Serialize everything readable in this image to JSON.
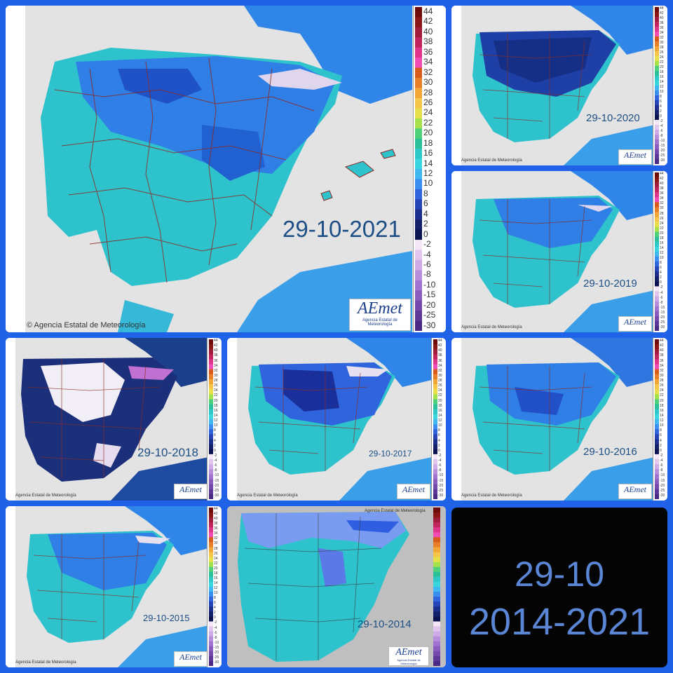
{
  "legend_labels": [
    "44",
    "42",
    "40",
    "38",
    "36",
    "34",
    "32",
    "30",
    "28",
    "26",
    "24",
    "22",
    "20",
    "18",
    "16",
    "14",
    "12",
    "10",
    "8",
    "6",
    "4",
    "2",
    "0",
    "-2",
    "-4",
    "-6",
    "-8",
    "-10",
    "-15",
    "-20",
    "-25",
    "-30"
  ],
  "legend_colors": [
    "#6e0c0c",
    "#8a1616",
    "#a01c3a",
    "#c0245c",
    "#e0338a",
    "#f04cb4",
    "#d95b1c",
    "#e8802a",
    "#f3a536",
    "#f6c64a",
    "#e8e04a",
    "#a6e04a",
    "#4fd07a",
    "#2bbf9a",
    "#2ec8c8",
    "#3ad6e0",
    "#3fb8f2",
    "#3a8ef0",
    "#2f64dc",
    "#2544b6",
    "#1c2f8e",
    "#14206a",
    "#0c1450",
    "#f4e6f4",
    "#e2c6ee",
    "#ceaae6",
    "#b88edc",
    "#a272d0",
    "#8a5cc0",
    "#7448ac",
    "#5e3898",
    "#4a2a84"
  ],
  "maps": [
    {
      "date": "29-10-2021",
      "palette": "cyan",
      "credit": "© Agencia Estatal de Meteorología",
      "logo": "AEmet",
      "logo_sub": "Agencia Estatal de Meteorología"
    },
    {
      "date": "29-10-2020",
      "palette": "darkblue",
      "credit": "Agencia Estatal de Meteorología",
      "logo": "AEmet",
      "logo_sub": "Agencia Estatal de Meteorología"
    },
    {
      "date": "29-10-2019",
      "palette": "mixed",
      "credit": "Agencia Estatal de Meteorología",
      "logo": "AEmet",
      "logo_sub": "Agencia Estatal de Meteorología"
    },
    {
      "date": "29-10-2018",
      "palette": "cold",
      "credit": "Agencia Estatal de Meteorología",
      "logo": "AEmet",
      "logo_sub": "Agencia Estatal de Meteorología"
    },
    {
      "date": "29-10-2017",
      "palette": "mixed",
      "credit": "Agencia Estatal de Meteorología",
      "logo": "AEmet",
      "logo_sub": "Agencia Estatal de Meteorología"
    },
    {
      "date": "29-10-2016",
      "palette": "cyan",
      "credit": "Agencia Estatal de Meteorología",
      "logo": "AEmet",
      "logo_sub": "Agencia Estatal de Meteorología"
    },
    {
      "date": "29-10-2015",
      "palette": "cyan",
      "credit": "Agencia Estatal de Meteorología",
      "logo": "AEmet",
      "logo_sub": "Agencia Estatal de Meteorología"
    },
    {
      "date": "29-10-2014",
      "palette": "grey",
      "credit": "Agencia Estatal de Meteorología",
      "logo": "AEmet",
      "logo_sub": "Agencia Estatal de Meteorología"
    }
  ],
  "summary": {
    "line1": "29-10",
    "line2": "2014-2021"
  }
}
